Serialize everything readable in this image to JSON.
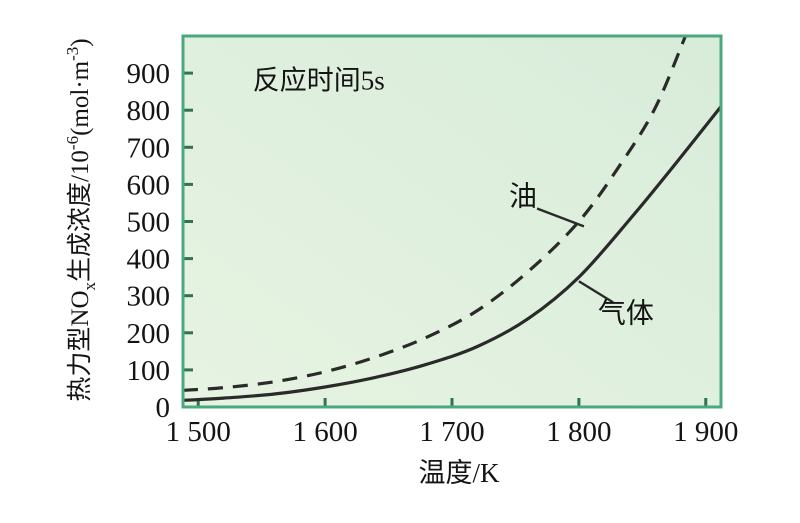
{
  "colors": {
    "page_bg": "#ffffff",
    "plot_bg": "#e7f3e2",
    "plot_bg2": "#d8ecda",
    "plot_border": "#4aa87c",
    "tick": "#2d7354",
    "curve": "#2a2a2a",
    "text": "#141414"
  },
  "chart_data": {
    "type": "line",
    "title": "",
    "annotation": {
      "text": "反应时间5s",
      "at": [
        1595,
        880
      ]
    },
    "xlabel": "温度/K",
    "ylabel_plain": "热力型NOx生成浓度/10-6(mol·m-3)",
    "ylabel_parts": [
      {
        "t": "热力型NO"
      },
      {
        "t": "x",
        "s": "sub"
      },
      {
        "t": "生成浓度/10"
      },
      {
        "t": "-6",
        "s": "sup"
      },
      {
        "t": "(mol·m"
      },
      {
        "t": "-3",
        "s": "sup"
      },
      {
        "t": ")"
      }
    ],
    "xlim": [
      1488,
      1912
    ],
    "ylim": [
      0,
      1000
    ],
    "grid": false,
    "legend_position": "inline-labels",
    "x_ticks": [
      {
        "v": 1500,
        "label": "1 500"
      },
      {
        "v": 1600,
        "label": "1 600"
      },
      {
        "v": 1700,
        "label": "1 700"
      },
      {
        "v": 1800,
        "label": "1 800"
      },
      {
        "v": 1900,
        "label": "1 900"
      }
    ],
    "y_ticks": [
      {
        "v": 0,
        "label": "0"
      },
      {
        "v": 100,
        "label": "100"
      },
      {
        "v": 200,
        "label": "200"
      },
      {
        "v": 300,
        "label": "300"
      },
      {
        "v": 400,
        "label": "400"
      },
      {
        "v": 500,
        "label": "500"
      },
      {
        "v": 600,
        "label": "600"
      },
      {
        "v": 700,
        "label": "700"
      },
      {
        "v": 800,
        "label": "800"
      },
      {
        "v": 900,
        "label": "900"
      }
    ],
    "series": [
      {
        "id": "oil",
        "name": "油",
        "line": "dashed",
        "points": [
          [
            1488,
            45
          ],
          [
            1520,
            52
          ],
          [
            1560,
            68
          ],
          [
            1600,
            95
          ],
          [
            1640,
            135
          ],
          [
            1680,
            188
          ],
          [
            1720,
            260
          ],
          [
            1760,
            365
          ],
          [
            1800,
            500
          ],
          [
            1832,
            650
          ],
          [
            1860,
            805
          ],
          [
            1884,
            1000
          ]
        ]
      },
      {
        "id": "gas",
        "name": "气体",
        "line": "solid",
        "points": [
          [
            1488,
            18
          ],
          [
            1520,
            24
          ],
          [
            1560,
            35
          ],
          [
            1600,
            54
          ],
          [
            1640,
            80
          ],
          [
            1680,
            115
          ],
          [
            1720,
            163
          ],
          [
            1760,
            238
          ],
          [
            1800,
            350
          ],
          [
            1840,
            505
          ],
          [
            1876,
            655
          ],
          [
            1912,
            810
          ]
        ]
      }
    ],
    "series_labels": [
      {
        "for": "oil",
        "text": "油",
        "at": [
          1756,
          570
        ],
        "leader": [
          [
            1767,
            535
          ],
          [
            1804,
            487
          ]
        ]
      },
      {
        "for": "gas",
        "text": "气体",
        "at": [
          1837,
          255
        ],
        "leader": [
          [
            1800,
            339
          ],
          [
            1827,
            282
          ]
        ]
      }
    ]
  }
}
